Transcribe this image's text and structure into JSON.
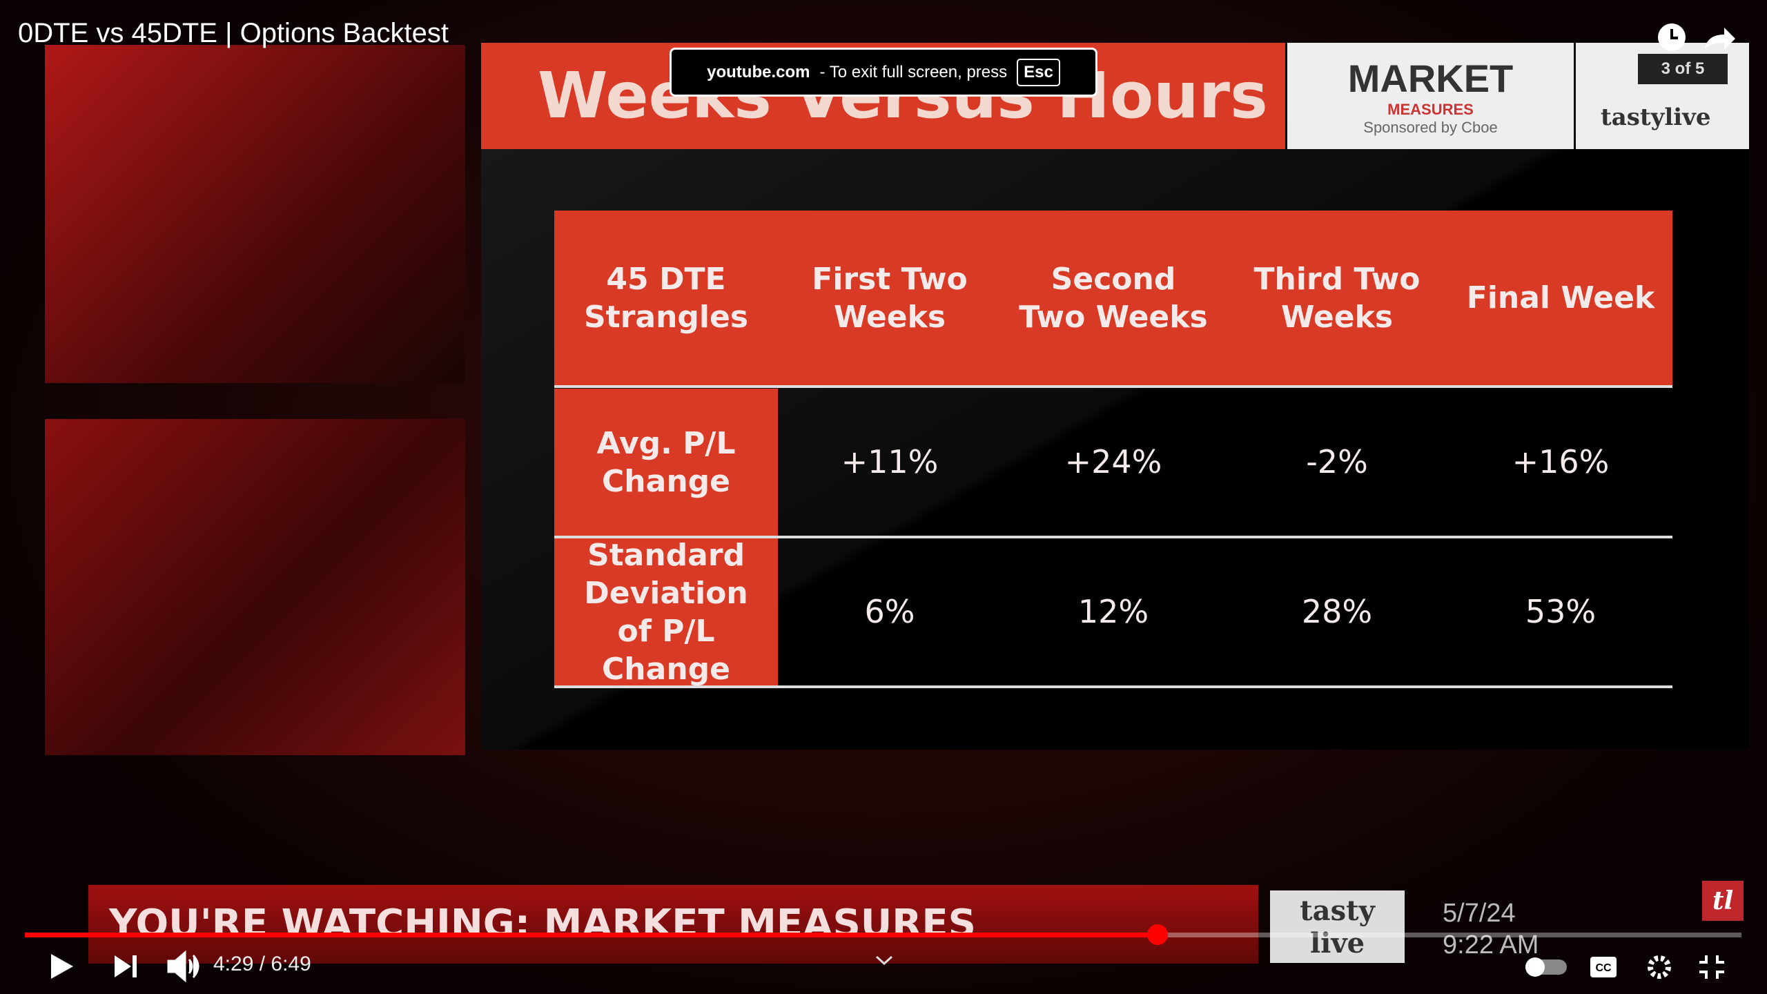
{
  "video_title": "0DTE vs 45DTE | Options Backtest",
  "fullscreen_notice": {
    "site": "youtube.com",
    "message": "-  To exit full screen, press",
    "key": "Esc"
  },
  "slide": {
    "title": "Weeks Versus Hours",
    "logo": {
      "name": "MARKET",
      "sub": "MEASURES",
      "sponsor": "Sponsored by Cboe"
    },
    "page": "3 of 5",
    "brand": "tastylive",
    "table": {
      "header": [
        "45 DTE Strangles",
        "First Two Weeks",
        "Second Two Weeks",
        "Third Two Weeks",
        "Final Week"
      ],
      "rows": [
        [
          "Avg. P/L Change",
          "+11%",
          "+24%",
          "-2%",
          "+16%"
        ],
        [
          "Standard Deviation of P/L Change",
          "6%",
          "12%",
          "28%",
          "53%"
        ]
      ]
    }
  },
  "banner": {
    "text": "YOU'RE WATCHING: MARKET MEASURES",
    "brand": "tasty live",
    "date": "5/7/24",
    "time": "9:22 AM"
  },
  "player": {
    "time": "4:29 / 6:49",
    "cc": "CC"
  }
}
